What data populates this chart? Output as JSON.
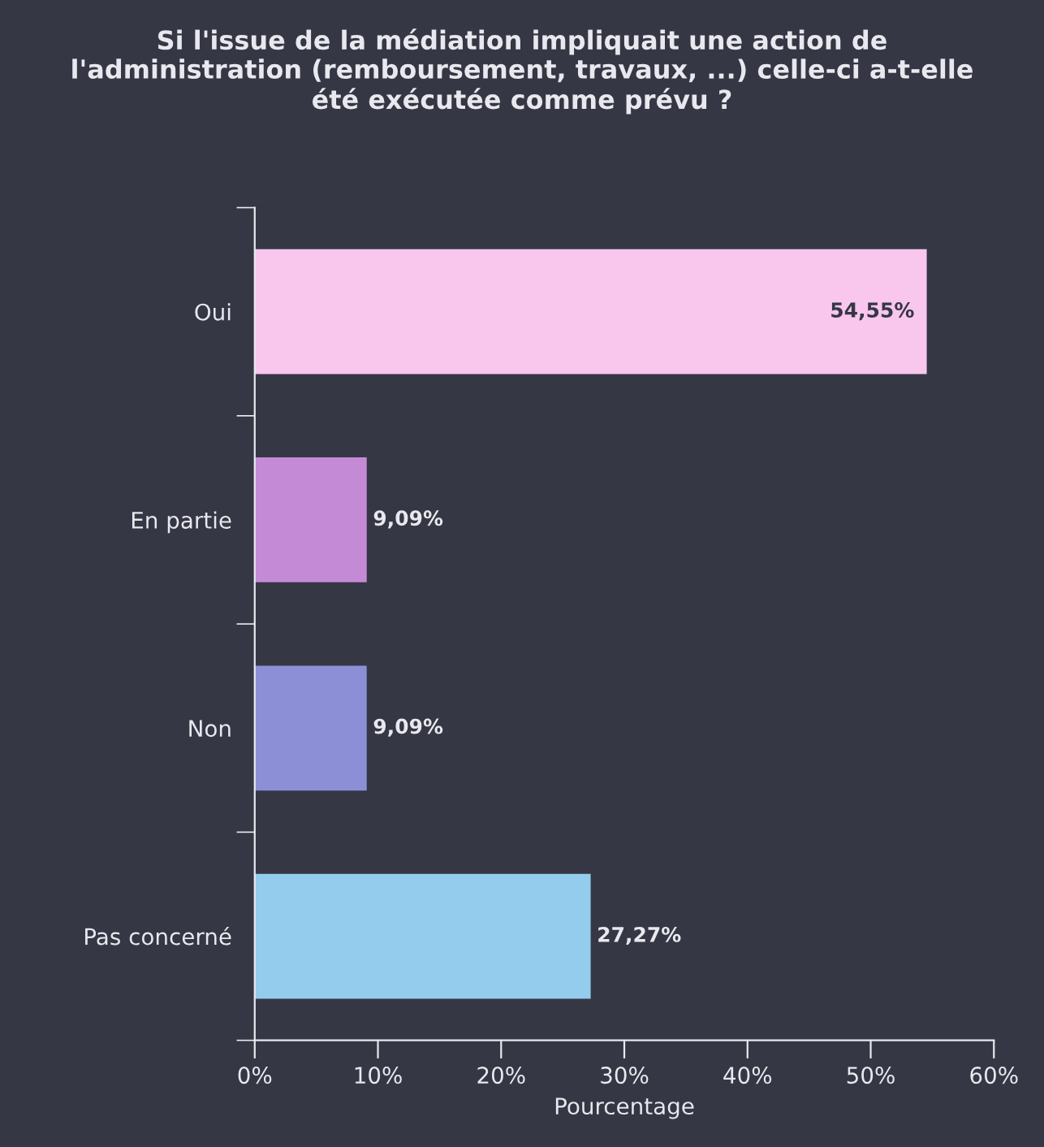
{
  "chart_data": {
    "type": "bar",
    "orientation": "horizontal",
    "title": "Si l'issue de la médiation impliquait une action de\nl'administration (remboursement, travaux, ...) celle-ci a-t-elle\nété exécutée comme prévu ?",
    "xlabel": "Pourcentage",
    "categories": [
      "Oui",
      "En partie",
      "Non",
      "Pas concerné"
    ],
    "values": [
      54.55,
      9.09,
      9.09,
      27.27
    ],
    "colors": [
      "#f9c6ee",
      "#c58ad6",
      "#8d8fd6",
      "#93ccec"
    ],
    "value_labels": [
      "54,55%",
      "9,09%",
      "9,09%",
      "27,27%"
    ],
    "xlim": [
      0,
      60
    ],
    "xticks": [
      {
        "value": 0,
        "label": "0%"
      },
      {
        "value": 10,
        "label": "10%"
      },
      {
        "value": 20,
        "label": "20%"
      },
      {
        "value": 30,
        "label": "30%"
      },
      {
        "value": 40,
        "label": "40%"
      },
      {
        "value": 50,
        "label": "50%"
      },
      {
        "value": 60,
        "label": "60%"
      }
    ],
    "grid": false,
    "legend": false
  }
}
